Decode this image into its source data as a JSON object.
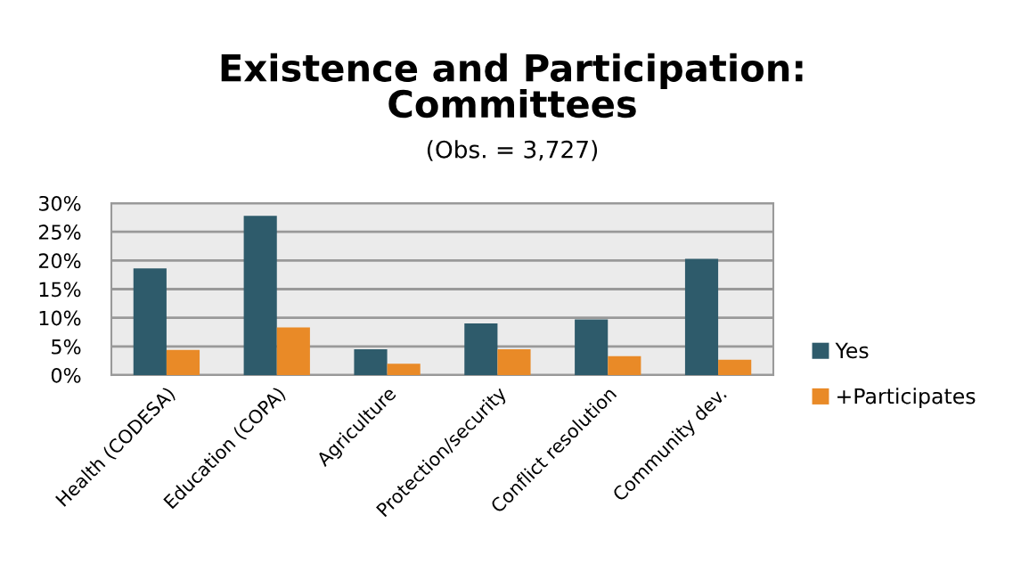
{
  "chart_data": {
    "type": "bar",
    "title": "Existence and Participation:\nCommittees",
    "subtitle": "(Obs. = 3,727)",
    "categories": [
      "Health (CODESA)",
      "Education (COPA)",
      "Agriculture",
      "Protection/security",
      "Conflict resolution",
      "Community dev."
    ],
    "series": [
      {
        "name": "Yes",
        "color": "#2e5b6b",
        "values": [
          18.6,
          27.8,
          4.5,
          9.0,
          9.7,
          20.3
        ]
      },
      {
        "name": "+Participates",
        "color": "#e98a27",
        "values": [
          4.4,
          8.3,
          2.0,
          4.5,
          3.3,
          2.7
        ]
      }
    ],
    "ylim": [
      0,
      30
    ],
    "yticks": [
      {
        "value": 0,
        "label": "0%"
      },
      {
        "value": 5,
        "label": "5%"
      },
      {
        "value": 10,
        "label": "10%"
      },
      {
        "value": 15,
        "label": "15%"
      },
      {
        "value": 20,
        "label": "20%"
      },
      {
        "value": 25,
        "label": "25%"
      },
      {
        "value": 30,
        "label": "30%"
      }
    ],
    "grid": "y",
    "legend": "right"
  }
}
